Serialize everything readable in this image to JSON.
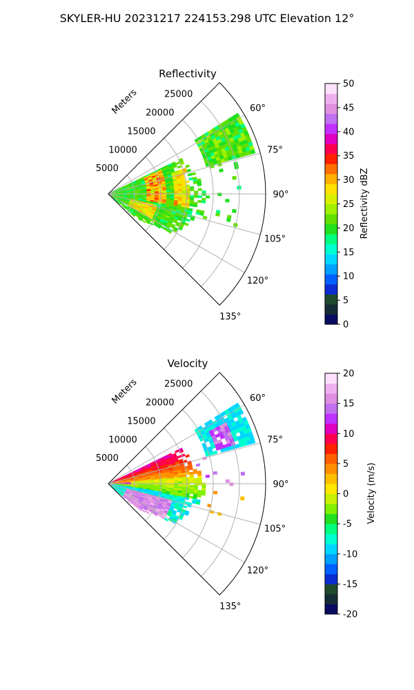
{
  "figure": {
    "title": "SKYLER-HU  20231217  224153.298 UTC Elevation 12°"
  },
  "chart_data": [
    {
      "type": "heatmap",
      "projection": "polar-sector",
      "title": "Reflectivity",
      "range_axis_label": "Meters",
      "range_ticks": [
        "5000",
        "10000",
        "15000",
        "20000",
        "25000"
      ],
      "range_tick_values": [
        5000,
        10000,
        15000,
        20000,
        25000
      ],
      "rmax": 30000,
      "theta_range_deg": [
        45,
        135
      ],
      "angle_ticks": [
        "60°",
        "75°",
        "90°",
        "105°",
        "120°",
        "135°"
      ],
      "angle_tick_values": [
        60,
        75,
        90,
        105,
        120,
        135
      ],
      "grid": true,
      "colorbar": {
        "label": "Reflectivity dBZ",
        "range": [
          0,
          50
        ],
        "ticks": [
          "0",
          "5",
          "10",
          "15",
          "20",
          "25",
          "30",
          "35",
          "40",
          "45",
          "50"
        ],
        "tick_values": [
          0,
          5,
          10,
          15,
          20,
          25,
          30,
          35,
          40,
          45,
          50
        ]
      },
      "field_summary": {
        "data_azimuth_range_deg": [
          55,
          130
        ],
        "typical_value": 20,
        "peak_value": 37
      }
    },
    {
      "type": "heatmap",
      "projection": "polar-sector",
      "title": "Velocity",
      "range_axis_label": "Meters",
      "range_ticks": [
        "5000",
        "10000",
        "15000",
        "20000",
        "25000"
      ],
      "range_tick_values": [
        5000,
        10000,
        15000,
        20000,
        25000
      ],
      "rmax": 30000,
      "theta_range_deg": [
        45,
        135
      ],
      "angle_ticks": [
        "60°",
        "75°",
        "90°",
        "105°",
        "120°",
        "135°"
      ],
      "angle_tick_values": [
        60,
        75,
        90,
        105,
        120,
        135
      ],
      "grid": true,
      "colorbar": {
        "label": "Velocity (m/s)",
        "range": [
          -20,
          20
        ],
        "ticks": [
          "-20",
          "-15",
          "-10",
          "-5",
          "0",
          "5",
          "10",
          "15",
          "20"
        ],
        "tick_values": [
          -20,
          -15,
          -10,
          -5,
          0,
          5,
          10,
          15,
          20
        ]
      },
      "field_summary": {
        "data_azimuth_range_deg": [
          55,
          130
        ],
        "min_value": -12,
        "max_value": 15
      }
    }
  ],
  "colormaps": {
    "reflectivity": [
      "#0a0a60",
      "#152c36",
      "#1f4a2e",
      "#0a2cd0",
      "#0060ff",
      "#00a0ff",
      "#00d6ff",
      "#00ffd0",
      "#00ff80",
      "#20e020",
      "#60e000",
      "#a0f000",
      "#d8f000",
      "#ffe000",
      "#ffb000",
      "#ff7000",
      "#ff2000",
      "#ff0050",
      "#e000c0",
      "#c030ff",
      "#c070f0",
      "#e090e0",
      "#f0b0f0",
      "#fde0fb"
    ],
    "velocity": [
      "#0a0a60",
      "#152c36",
      "#1f4a2e",
      "#0a2cd0",
      "#0060ff",
      "#00a0ff",
      "#00d6ff",
      "#00ffd0",
      "#00ff80",
      "#20e020",
      "#80f000",
      "#c8f000",
      "#ffe800",
      "#ffc000",
      "#ff9000",
      "#ff6000",
      "#ff2000",
      "#ff0050",
      "#e000c0",
      "#c030ff",
      "#c070f0",
      "#e090e0",
      "#f0b0f0",
      "#fde0fb"
    ]
  }
}
